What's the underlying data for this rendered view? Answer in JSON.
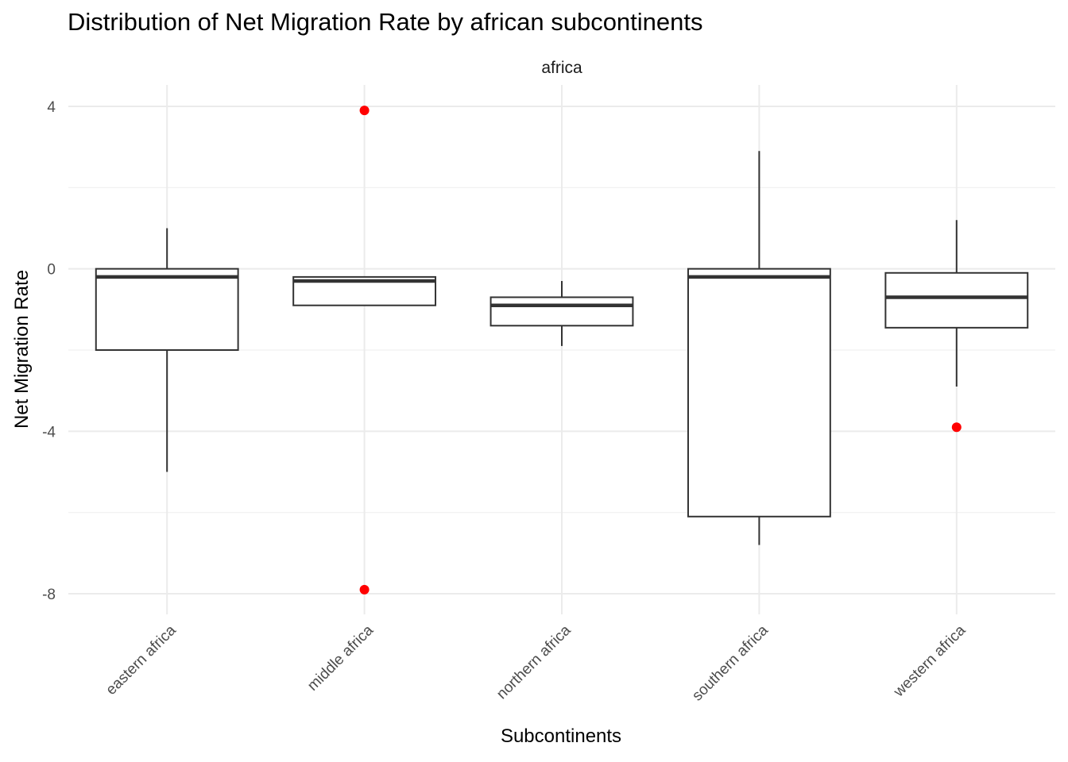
{
  "chart_data": {
    "type": "boxplot",
    "title": "Distribution of Net Migration Rate by african subcontinents",
    "facet": "africa",
    "xlabel": "Subcontinents",
    "ylabel": "Net Migration Rate",
    "ylim": [
      -8.5,
      4.5
    ],
    "yticks": [
      4,
      0,
      -4,
      -8
    ],
    "ytick_labels": [
      "4",
      "0",
      "-4",
      "-8"
    ],
    "grid": true,
    "outlier_color": "#ff0000",
    "box_color": "#333333",
    "categories": [
      "eastern africa",
      "middle africa",
      "northern africa",
      "southern africa",
      "western africa"
    ],
    "boxes": [
      {
        "category": "eastern africa",
        "whisker_low": -5.0,
        "q1": -2.0,
        "median": -0.2,
        "q3": 0.0,
        "whisker_high": 1.0,
        "outliers": []
      },
      {
        "category": "middle africa",
        "whisker_low": -0.9,
        "q1": -0.9,
        "median": -0.3,
        "q3": -0.2,
        "whisker_high": -0.2,
        "outliers": [
          3.9,
          -7.9
        ]
      },
      {
        "category": "northern africa",
        "whisker_low": -1.9,
        "q1": -1.4,
        "median": -0.9,
        "q3": -0.7,
        "whisker_high": -0.3,
        "outliers": []
      },
      {
        "category": "southern africa",
        "whisker_low": -6.8,
        "q1": -6.1,
        "median": -0.2,
        "q3": 0.0,
        "whisker_high": 2.9,
        "outliers": []
      },
      {
        "category": "western africa",
        "whisker_low": -2.9,
        "q1": -1.45,
        "median": -0.7,
        "q3": -0.1,
        "whisker_high": 1.2,
        "outliers": [
          -3.9
        ]
      }
    ]
  }
}
